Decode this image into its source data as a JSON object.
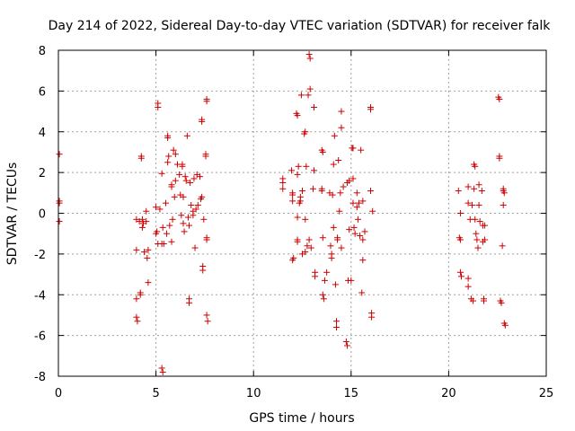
{
  "chart_data": {
    "type": "scatter",
    "title": "Day 214 of 2022, Sidereal Day-to-day VTEC variation (SDTVAR) for receiver falk",
    "xlabel": "GPS time / hours",
    "ylabel": "SDTVAR / TECUs",
    "xlim": [
      0,
      25
    ],
    "ylim": [
      -8,
      8
    ],
    "xticks": [
      0,
      5,
      10,
      15,
      20,
      25
    ],
    "yticks": [
      -8,
      -6,
      -4,
      -2,
      0,
      2,
      4,
      6,
      8
    ],
    "grid": true,
    "marker": "+",
    "color": "#cc0000",
    "series": [
      {
        "name": "SDTVAR",
        "points": [
          [
            0.05,
            2.9
          ],
          [
            0.05,
            0.6
          ],
          [
            0.05,
            0.5
          ],
          [
            0.05,
            -0.4
          ],
          [
            4.0,
            -0.3
          ],
          [
            4.0,
            -1.8
          ],
          [
            4.0,
            -4.2
          ],
          [
            4.0,
            -5.1
          ],
          [
            4.05,
            -5.3
          ],
          [
            4.15,
            -0.4
          ],
          [
            4.2,
            -4.0
          ],
          [
            4.2,
            -3.9
          ],
          [
            4.25,
            2.8
          ],
          [
            4.25,
            2.7
          ],
          [
            4.3,
            -0.3
          ],
          [
            4.3,
            -0.7
          ],
          [
            4.35,
            -0.5
          ],
          [
            4.4,
            -1.9
          ],
          [
            4.5,
            -0.4
          ],
          [
            4.5,
            0.1
          ],
          [
            4.55,
            -2.2
          ],
          [
            4.6,
            -3.4
          ],
          [
            4.6,
            -1.8
          ],
          [
            5.0,
            -1.0
          ],
          [
            5.0,
            0.3
          ],
          [
            5.05,
            -0.9
          ],
          [
            5.1,
            5.2
          ],
          [
            5.1,
            5.4
          ],
          [
            5.1,
            -1.5
          ],
          [
            5.2,
            0.2
          ],
          [
            5.3,
            -1.5
          ],
          [
            5.3,
            1.95
          ],
          [
            5.3,
            -7.6
          ],
          [
            5.35,
            -7.8
          ],
          [
            5.35,
            -0.7
          ],
          [
            5.4,
            -1.5
          ],
          [
            5.5,
            0.5
          ],
          [
            5.55,
            -1.0
          ],
          [
            5.6,
            2.5
          ],
          [
            5.6,
            3.8
          ],
          [
            5.6,
            3.7
          ],
          [
            5.65,
            2.8
          ],
          [
            5.7,
            -0.6
          ],
          [
            5.8,
            1.4
          ],
          [
            5.8,
            1.3
          ],
          [
            5.8,
            -1.4
          ],
          [
            5.85,
            -0.3
          ],
          [
            5.9,
            3.1
          ],
          [
            5.95,
            0.8
          ],
          [
            6.0,
            1.6
          ],
          [
            6.0,
            2.9
          ],
          [
            6.1,
            2.4
          ],
          [
            6.2,
            1.9
          ],
          [
            6.25,
            0.9
          ],
          [
            6.3,
            -0.1
          ],
          [
            6.35,
            2.3
          ],
          [
            6.35,
            2.4
          ],
          [
            6.4,
            0.8
          ],
          [
            6.4,
            -0.5
          ],
          [
            6.45,
            -0.9
          ],
          [
            6.5,
            1.8
          ],
          [
            6.55,
            1.6
          ],
          [
            6.6,
            3.8
          ],
          [
            6.65,
            -0.2
          ],
          [
            6.7,
            -0.6
          ],
          [
            6.7,
            -4.2
          ],
          [
            6.7,
            -4.4
          ],
          [
            6.75,
            1.5
          ],
          [
            6.8,
            0.4
          ],
          [
            6.9,
            -0.1
          ],
          [
            6.9,
            0.1
          ],
          [
            6.95,
            1.7
          ],
          [
            7.0,
            -1.7
          ],
          [
            7.05,
            0.2
          ],
          [
            7.1,
            1.9
          ],
          [
            7.15,
            0.4
          ],
          [
            7.25,
            1.8
          ],
          [
            7.3,
            0.7
          ],
          [
            7.35,
            4.6
          ],
          [
            7.35,
            4.5
          ],
          [
            7.35,
            0.8
          ],
          [
            7.4,
            -2.6
          ],
          [
            7.4,
            -2.8
          ],
          [
            7.45,
            -0.3
          ],
          [
            7.55,
            2.9
          ],
          [
            7.55,
            2.8
          ],
          [
            7.6,
            5.6
          ],
          [
            7.6,
            5.5
          ],
          [
            7.6,
            -1.3
          ],
          [
            7.6,
            -1.2
          ],
          [
            7.6,
            -5.0
          ],
          [
            7.65,
            -5.3
          ],
          [
            11.5,
            1.7
          ],
          [
            11.5,
            1.5
          ],
          [
            11.5,
            1.2
          ],
          [
            11.95,
            2.1
          ],
          [
            12.0,
            0.6
          ],
          [
            12.0,
            1.0
          ],
          [
            12.0,
            0.9
          ],
          [
            12.0,
            -2.3
          ],
          [
            12.05,
            -2.2
          ],
          [
            12.2,
            4.9
          ],
          [
            12.25,
            4.8
          ],
          [
            12.25,
            -1.3
          ],
          [
            12.25,
            -1.4
          ],
          [
            12.25,
            1.9
          ],
          [
            12.25,
            -0.2
          ],
          [
            12.3,
            2.3
          ],
          [
            12.35,
            0.5
          ],
          [
            12.4,
            0.6
          ],
          [
            12.4,
            0.8
          ],
          [
            12.45,
            5.8
          ],
          [
            12.5,
            1.1
          ],
          [
            12.5,
            -2.0
          ],
          [
            12.6,
            3.9
          ],
          [
            12.65,
            4.0
          ],
          [
            12.65,
            -0.3
          ],
          [
            12.65,
            -1.9
          ],
          [
            12.7,
            2.3
          ],
          [
            12.75,
            -1.6
          ],
          [
            12.8,
            5.8
          ],
          [
            12.85,
            -1.3
          ],
          [
            12.85,
            7.8
          ],
          [
            12.9,
            7.6
          ],
          [
            12.9,
            6.1
          ],
          [
            12.95,
            -1.7
          ],
          [
            13.05,
            1.2
          ],
          [
            13.1,
            5.2
          ],
          [
            13.1,
            2.1
          ],
          [
            13.15,
            -2.9
          ],
          [
            13.15,
            -3.1
          ],
          [
            13.5,
            3.1
          ],
          [
            13.5,
            1.2
          ],
          [
            13.5,
            1.1
          ],
          [
            13.55,
            3.0
          ],
          [
            13.55,
            -1.2
          ],
          [
            13.55,
            -4.0
          ],
          [
            13.6,
            -4.2
          ],
          [
            13.65,
            -3.3
          ],
          [
            13.75,
            -2.9
          ],
          [
            13.9,
            1.0
          ],
          [
            13.95,
            -1.6
          ],
          [
            14.0,
            -2.0
          ],
          [
            14.0,
            -2.2
          ],
          [
            14.05,
            0.9
          ],
          [
            14.1,
            2.4
          ],
          [
            14.1,
            -0.7
          ],
          [
            14.15,
            3.8
          ],
          [
            14.2,
            -3.5
          ],
          [
            14.25,
            -5.3
          ],
          [
            14.25,
            -5.6
          ],
          [
            14.3,
            -1.3
          ],
          [
            14.3,
            -1.2
          ],
          [
            14.35,
            2.6
          ],
          [
            14.4,
            0.1
          ],
          [
            14.45,
            1.0
          ],
          [
            14.5,
            5.0
          ],
          [
            14.5,
            -1.7
          ],
          [
            14.5,
            4.2
          ],
          [
            14.6,
            1.3
          ],
          [
            14.75,
            -6.3
          ],
          [
            14.8,
            -6.5
          ],
          [
            14.8,
            1.5
          ],
          [
            14.85,
            -3.3
          ],
          [
            14.9,
            -0.8
          ],
          [
            14.9,
            1.6
          ],
          [
            15.0,
            -3.3
          ],
          [
            15.05,
            3.2
          ],
          [
            15.1,
            3.2
          ],
          [
            15.1,
            1.7
          ],
          [
            15.1,
            0.5
          ],
          [
            15.15,
            -0.7
          ],
          [
            15.2,
            -1.0
          ],
          [
            15.3,
            0.3
          ],
          [
            15.3,
            1.0
          ],
          [
            15.35,
            -0.3
          ],
          [
            15.4,
            0.5
          ],
          [
            15.45,
            -1.1
          ],
          [
            15.5,
            3.1
          ],
          [
            15.55,
            -3.9
          ],
          [
            15.6,
            -2.3
          ],
          [
            15.6,
            -1.3
          ],
          [
            15.6,
            0.6
          ],
          [
            15.7,
            -0.9
          ],
          [
            16.0,
            5.2
          ],
          [
            16.0,
            5.1
          ],
          [
            16.0,
            1.1
          ],
          [
            16.05,
            -4.9
          ],
          [
            16.05,
            -5.1
          ],
          [
            16.1,
            0.1
          ],
          [
            20.5,
            1.1
          ],
          [
            20.55,
            -1.2
          ],
          [
            20.6,
            0.0
          ],
          [
            20.6,
            -1.3
          ],
          [
            20.6,
            -2.9
          ],
          [
            20.65,
            -3.1
          ],
          [
            21.0,
            1.3
          ],
          [
            21.0,
            0.5
          ],
          [
            21.0,
            -3.2
          ],
          [
            21.0,
            -3.6
          ],
          [
            21.1,
            -0.3
          ],
          [
            21.15,
            -4.2
          ],
          [
            21.2,
            0.4
          ],
          [
            21.25,
            -4.3
          ],
          [
            21.3,
            1.2
          ],
          [
            21.3,
            2.4
          ],
          [
            21.35,
            2.3
          ],
          [
            21.35,
            -0.3
          ],
          [
            21.4,
            -1.0
          ],
          [
            21.45,
            -1.3
          ],
          [
            21.5,
            -1.7
          ],
          [
            21.55,
            0.4
          ],
          [
            21.55,
            1.4
          ],
          [
            21.6,
            -0.4
          ],
          [
            21.7,
            1.1
          ],
          [
            21.75,
            -1.4
          ],
          [
            21.75,
            -0.6
          ],
          [
            21.8,
            -4.2
          ],
          [
            21.8,
            -4.3
          ],
          [
            21.85,
            -0.6
          ],
          [
            21.85,
            -1.3
          ],
          [
            22.55,
            5.7
          ],
          [
            22.6,
            2.8
          ],
          [
            22.6,
            2.7
          ],
          [
            22.6,
            5.6
          ],
          [
            22.65,
            -4.3
          ],
          [
            22.7,
            -4.4
          ],
          [
            22.75,
            -1.6
          ],
          [
            22.8,
            1.1
          ],
          [
            22.8,
            1.2
          ],
          [
            22.8,
            0.4
          ],
          [
            22.85,
            1.0
          ],
          [
            22.85,
            -5.4
          ],
          [
            22.9,
            -5.5
          ]
        ]
      }
    ]
  }
}
